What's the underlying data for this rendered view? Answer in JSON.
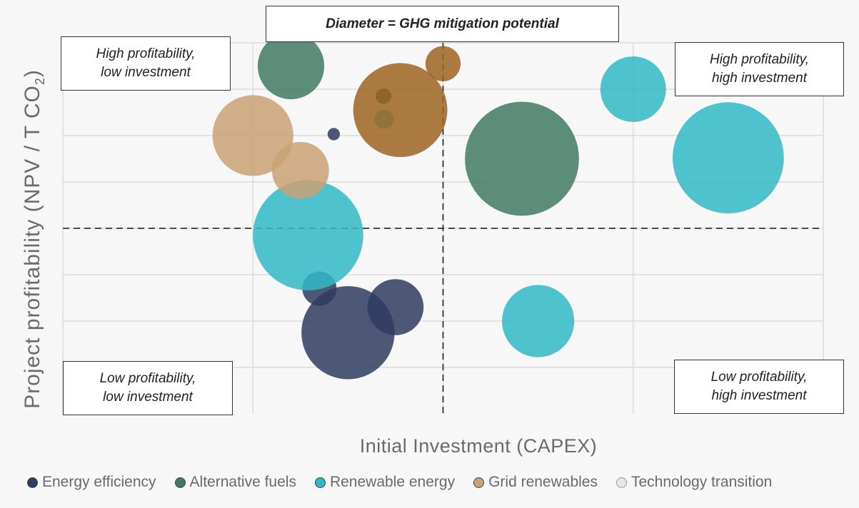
{
  "chart_data": {
    "type": "bubble",
    "title": "Diameter = GHG mitigation potential",
    "xlabel": "Initial Investment (CAPEX)",
    "ylabel_main": "Project profitability (NPV / T CO",
    "ylabel_sub": "2",
    "ylabel_close": ")",
    "xlim": [
      0,
      8
    ],
    "ylim": [
      0,
      8
    ],
    "grid": true,
    "x_divider": 4,
    "y_divider": 4,
    "quadrants": {
      "top_left": "High profitability,\nlow investment",
      "top_right": "High profitability,\nhigh investment",
      "bottom_left": "Low profitability,\nlow investment",
      "bottom_right": "Low profitability,\nhigh investment"
    },
    "legend_position": "bottom",
    "series": [
      {
        "name": "Energy efficiency",
        "color": "#2f3c60",
        "points": [
          {
            "x": 2.7,
            "y": 2.7,
            "size": 0.36
          },
          {
            "x": 3.5,
            "y": 2.3,
            "size": 0.59
          },
          {
            "x": 3.0,
            "y": 1.75,
            "size": 0.98
          },
          {
            "x": 3.37,
            "y": 6.85,
            "size": 0.16
          },
          {
            "x": 2.85,
            "y": 6.03,
            "size": 0.13
          }
        ]
      },
      {
        "name": "Alternative fuels",
        "color": "#3f7a62",
        "points": [
          {
            "x": 2.4,
            "y": 7.5,
            "size": 0.7
          },
          {
            "x": 3.38,
            "y": 6.85,
            "size": 0.16
          },
          {
            "x": 4.83,
            "y": 5.5,
            "size": 1.2
          }
        ]
      },
      {
        "name": "Renewable energy",
        "color": "#30b8c5",
        "points": [
          {
            "x": 3.38,
            "y": 6.35,
            "size": 0.2
          },
          {
            "x": 2.58,
            "y": 3.85,
            "size": 1.16
          },
          {
            "x": 5.0,
            "y": 2.0,
            "size": 0.76
          },
          {
            "x": 6.0,
            "y": 7.0,
            "size": 0.69
          },
          {
            "x": 7.0,
            "y": 5.52,
            "size": 1.17
          }
        ]
      },
      {
        "name": "Grid renewables",
        "color": "#c9a274",
        "points": [
          {
            "x": 2.0,
            "y": 6.0,
            "size": 0.85
          },
          {
            "x": 2.5,
            "y": 5.25,
            "size": 0.6
          }
        ]
      },
      {
        "name": "Grid renewables",
        "color": "#9c6420",
        "points": [
          {
            "x": 3.55,
            "y": 6.55,
            "size": 0.99
          },
          {
            "x": 4.0,
            "y": 7.55,
            "size": 0.37
          }
        ]
      }
    ],
    "legend": [
      {
        "label": "Energy efficiency",
        "color": "#2f3c60"
      },
      {
        "label": "Alternative fuels",
        "color": "#3f7a62"
      },
      {
        "label": "Renewable energy",
        "color": "#30b8c5"
      },
      {
        "label": "Grid renewables",
        "color": "#c9a274"
      },
      {
        "label": "Technology transition",
        "color": "#e6e6e6"
      }
    ]
  }
}
